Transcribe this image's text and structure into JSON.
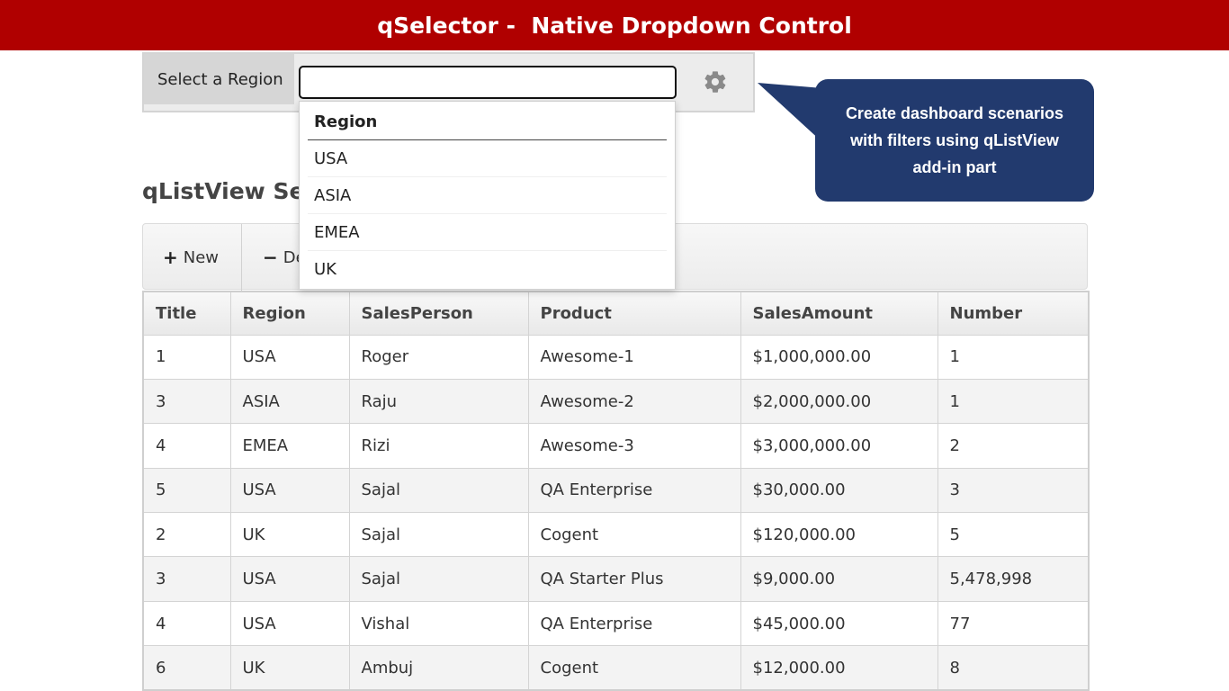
{
  "banner": {
    "title": "qSelector -  Native Dropdown Control"
  },
  "selector": {
    "label": "Select a Region",
    "value": "",
    "placeholder": ""
  },
  "dropdown": {
    "header": "Region",
    "options": [
      "USA",
      "ASIA",
      "EMEA",
      "UK"
    ]
  },
  "callout": {
    "text": "Create dashboard scenarios with filters using qListView add-in part"
  },
  "section": {
    "title": "qListView Sele"
  },
  "toolbar": {
    "new_label": "New",
    "delete_label": "De"
  },
  "table": {
    "columns": [
      "Title",
      "Region",
      "SalesPerson",
      "Product",
      "SalesAmount",
      "Number"
    ],
    "rows": [
      [
        "1",
        "USA",
        "Roger",
        "Awesome-1",
        "$1,000,000.00",
        "1"
      ],
      [
        "3",
        "ASIA",
        "Raju",
        "Awesome-2",
        "$2,000,000.00",
        "1"
      ],
      [
        "4",
        "EMEA",
        "Rizi",
        "Awesome-3",
        "$3,000,000.00",
        "2"
      ],
      [
        "5",
        "USA",
        "Sajal",
        "QA Enterprise",
        "$30,000.00",
        "3"
      ],
      [
        "2",
        "UK",
        "Sajal",
        "Cogent",
        "$120,000.00",
        "5"
      ],
      [
        "3",
        "USA",
        "Sajal",
        "QA Starter Plus",
        "$9,000.00",
        "5,478,998"
      ],
      [
        "4",
        "USA",
        "Vishal",
        "QA Enterprise",
        "$45,000.00",
        "77"
      ],
      [
        "6",
        "UK",
        "Ambuj",
        "Cogent",
        "$12,000.00",
        "8"
      ]
    ]
  },
  "colors": {
    "banner_bg": "#b00000",
    "callout_bg": "#223a6e"
  },
  "icons": [
    "gear-icon",
    "plus-icon",
    "minus-icon"
  ]
}
